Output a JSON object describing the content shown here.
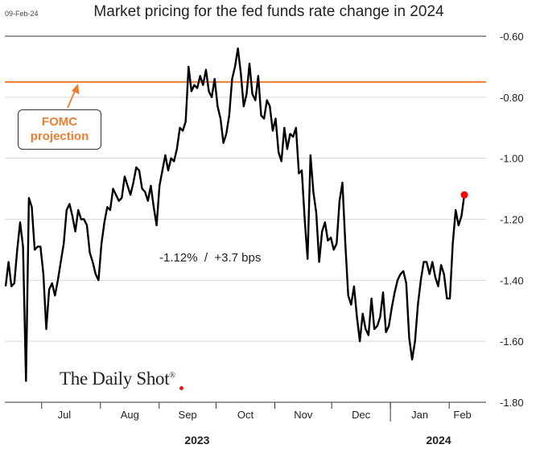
{
  "header": {
    "date_stamp": "09-Feb-24",
    "title": "Market pricing for the fed funds rate change in 2024"
  },
  "annotation": {
    "line1": "FOMC",
    "line2": "projection"
  },
  "stat_label": "-1.12%  /  +3.7 bps",
  "logo": {
    "text": "The Daily Shot",
    "mark": "®"
  },
  "colors": {
    "series": "#000000",
    "projection": "#ED7D31",
    "last_point": "#FF0000",
    "grid": "#D9D9D9"
  },
  "chart_data": {
    "type": "line",
    "title": "Market pricing for the fed funds rate change in 2024",
    "xlabel": "",
    "ylabel": "",
    "x_unit": "trading day",
    "x_range": [
      "2023-06-12",
      "2024-02-09"
    ],
    "ylim": [
      -1.8,
      -0.6
    ],
    "y_ticks": [
      -0.6,
      -0.8,
      -1.0,
      -1.2,
      -1.4,
      -1.6,
      -1.8
    ],
    "y_tick_labels": [
      "-0.60",
      "-0.80",
      "-1.00",
      "-1.20",
      "-1.40",
      "-1.60",
      "-1.80"
    ],
    "y_axis_position": "right",
    "grid": true,
    "months": [
      {
        "label": "Jul",
        "start": "2023-07-01"
      },
      {
        "label": "Aug",
        "start": "2023-08-01"
      },
      {
        "label": "Sep",
        "start": "2023-09-01"
      },
      {
        "label": "Oct",
        "start": "2023-10-01"
      },
      {
        "label": "Nov",
        "start": "2023-11-01"
      },
      {
        "label": "Dec",
        "start": "2023-12-01"
      },
      {
        "label": "Jan",
        "start": "2024-01-01"
      },
      {
        "label": "Feb",
        "start": "2024-02-01"
      }
    ],
    "years": [
      {
        "label": "2023",
        "start": "2023-06-12",
        "end": "2023-12-31"
      },
      {
        "label": "2024",
        "start": "2024-01-01",
        "end": "2024-02-09"
      }
    ],
    "reference_line": {
      "name": "FOMC projection",
      "value": -0.75
    },
    "series": [
      {
        "values": [
          -1.42,
          -1.34,
          -1.42,
          -1.41,
          -1.3,
          -1.21,
          -1.29,
          -1.73,
          -1.13,
          -1.16,
          -1.3,
          -1.29,
          -1.29,
          -1.38,
          -1.56,
          -1.43,
          -1.41,
          -1.45,
          -1.4,
          -1.34,
          -1.28,
          -1.17,
          -1.15,
          -1.19,
          -1.24,
          -1.17,
          -1.2,
          -1.2,
          -1.22,
          -1.31,
          -1.34,
          -1.38,
          -1.4,
          -1.28,
          -1.21,
          -1.16,
          -1.17,
          -1.1,
          -1.12,
          -1.14,
          -1.13,
          -1.06,
          -1.09,
          -1.12,
          -1.08,
          -1.03,
          -1.04,
          -1.1,
          -1.11,
          -1.14,
          -1.09,
          -1.16,
          -1.22,
          -1.09,
          -1.04,
          -0.99,
          -1.04,
          -1.0,
          -1.01,
          -0.97,
          -0.9,
          -0.91,
          -0.88,
          -0.7,
          -0.78,
          -0.76,
          -0.77,
          -0.73,
          -0.76,
          -0.71,
          -0.78,
          -0.8,
          -0.74,
          -0.83,
          -0.87,
          -0.95,
          -0.92,
          -0.86,
          -0.74,
          -0.7,
          -0.64,
          -0.72,
          -0.83,
          -0.79,
          -0.69,
          -0.79,
          -0.81,
          -0.73,
          -0.86,
          -0.87,
          -0.81,
          -0.83,
          -0.91,
          -0.87,
          -0.98,
          -1.01,
          -0.9,
          -0.97,
          -0.92,
          -0.93,
          -0.9,
          -1.05,
          -1.04,
          -1.2,
          -1.33,
          -0.99,
          -1.11,
          -1.18,
          -1.34,
          -1.24,
          -1.21,
          -1.27,
          -1.26,
          -1.3,
          -1.28,
          -1.14,
          -1.08,
          -1.28,
          -1.45,
          -1.48,
          -1.42,
          -1.52,
          -1.6,
          -1.51,
          -1.56,
          -1.58,
          -1.46,
          -1.56,
          -1.55,
          -1.52,
          -1.44,
          -1.57,
          -1.55,
          -1.49,
          -1.44,
          -1.4,
          -1.38,
          -1.37,
          -1.41,
          -1.59,
          -1.66,
          -1.6,
          -1.48,
          -1.4,
          -1.34,
          -1.34,
          -1.38,
          -1.34,
          -1.39,
          -1.42,
          -1.35,
          -1.38,
          -1.46,
          -1.46,
          -1.28,
          -1.17,
          -1.22,
          -1.19,
          -1.12
        ]
      }
    ],
    "last_point": {
      "value": -1.12
    }
  }
}
